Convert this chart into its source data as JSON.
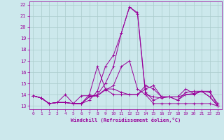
{
  "xlabel": "Windchill (Refroidissement éolien,°C)",
  "xlim": [
    -0.5,
    23.5
  ],
  "ylim": [
    12.7,
    22.3
  ],
  "yticks": [
    13,
    14,
    15,
    16,
    17,
    18,
    19,
    20,
    21,
    22
  ],
  "xticks": [
    0,
    1,
    2,
    3,
    4,
    5,
    6,
    7,
    8,
    9,
    10,
    11,
    12,
    13,
    14,
    15,
    16,
    17,
    18,
    19,
    20,
    21,
    22,
    23
  ],
  "background_color": "#cce8ec",
  "grid_color": "#aacccc",
  "line_color": "#990099",
  "lines": [
    [
      13.9,
      13.7,
      13.2,
      13.3,
      13.3,
      13.2,
      13.2,
      13.5,
      14.3,
      16.5,
      17.5,
      19.5,
      21.8,
      21.2,
      14.0,
      13.2,
      13.2,
      13.2,
      13.2,
      13.2,
      13.2,
      13.2,
      13.2,
      13.0
    ],
    [
      13.9,
      13.7,
      13.2,
      13.3,
      13.3,
      13.2,
      13.2,
      13.8,
      14.0,
      15.0,
      16.5,
      19.5,
      21.8,
      21.3,
      14.2,
      13.5,
      13.8,
      13.8,
      13.5,
      14.2,
      14.3,
      14.3,
      14.3,
      13.0
    ],
    [
      13.9,
      13.7,
      13.2,
      13.3,
      13.3,
      13.2,
      13.2,
      14.0,
      16.5,
      14.5,
      14.5,
      14.2,
      14.0,
      14.0,
      14.5,
      14.8,
      13.8,
      13.8,
      13.8,
      14.0,
      14.1,
      14.3,
      13.8,
      13.0
    ],
    [
      13.9,
      13.7,
      13.2,
      13.3,
      14.0,
      13.2,
      13.9,
      13.9,
      13.9,
      14.5,
      14.0,
      14.0,
      14.0,
      14.0,
      14.8,
      14.5,
      13.8,
      13.8,
      13.8,
      14.5,
      14.1,
      14.3,
      14.2,
      13.2
    ],
    [
      13.9,
      13.7,
      13.2,
      13.3,
      13.3,
      13.2,
      13.2,
      13.8,
      13.9,
      14.4,
      14.8,
      16.5,
      17.0,
      14.5,
      14.0,
      13.8,
      13.7,
      13.8,
      13.5,
      14.0,
      14.0,
      14.3,
      13.8,
      13.0
    ]
  ],
  "figsize": [
    3.2,
    2.0
  ],
  "dpi": 100
}
